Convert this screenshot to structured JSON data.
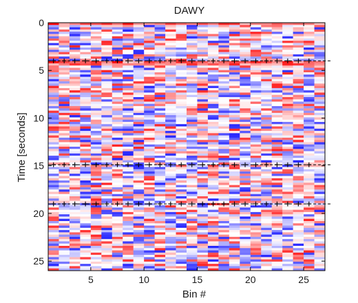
{
  "chart_data": {
    "type": "heatmap",
    "title": "DAWY",
    "xlabel": "Bin #",
    "ylabel": "Time [seconds]",
    "xlim": [
      1,
      27
    ],
    "ylim": [
      0,
      26
    ],
    "y_inverted": true,
    "x_ticks": [
      5,
      10,
      15,
      20,
      25
    ],
    "y_ticks": [
      0,
      5,
      10,
      15,
      20,
      25
    ],
    "n_bins": 26,
    "n_time_rows": 110,
    "colormap": {
      "negative": "#0000ff",
      "zero": "#ffffff",
      "positive": "#ff0000"
    },
    "value_range": [
      -1,
      1
    ],
    "marker_rows": [
      {
        "time": 4.0,
        "marker": "+",
        "x_positions": [
          2,
          3,
          4,
          5,
          6,
          7,
          8,
          9,
          10,
          11,
          12,
          13,
          14,
          15,
          16,
          17,
          18,
          19,
          20,
          21,
          22,
          23,
          24,
          25,
          26
        ]
      },
      {
        "time": 14.9,
        "marker": "+",
        "x_positions": [
          2,
          3,
          4,
          5,
          6,
          7,
          8,
          9,
          10,
          11,
          12,
          13,
          14,
          15,
          16,
          17,
          18,
          19,
          20,
          21,
          22,
          23,
          24,
          25,
          26
        ]
      },
      {
        "time": 19.0,
        "marker": "+",
        "x_positions": [
          2,
          3,
          4,
          5,
          6,
          7,
          8,
          9,
          10,
          11,
          12,
          13,
          14,
          15,
          16,
          17,
          18,
          19,
          20,
          21,
          22,
          23,
          24,
          25,
          26
        ]
      }
    ],
    "strong_rows": [
      {
        "time": 0.2,
        "dominant": "positive"
      },
      {
        "time": 4.2,
        "dominant": "positive"
      },
      {
        "time": 4.4,
        "dominant": "positive"
      }
    ]
  }
}
